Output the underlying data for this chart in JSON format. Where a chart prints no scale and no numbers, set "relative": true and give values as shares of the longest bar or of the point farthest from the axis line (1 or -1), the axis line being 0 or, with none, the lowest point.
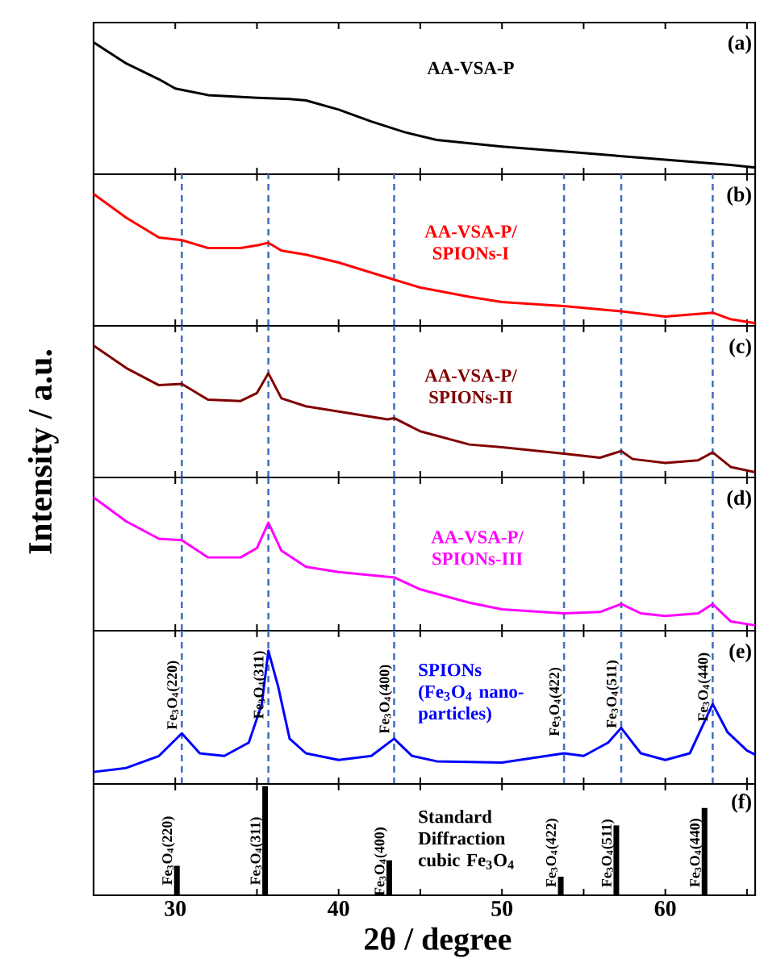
{
  "chart_data": [
    {
      "type": "line",
      "title": "AA-VSA-P",
      "color": "#000000",
      "relative": true,
      "xlim": [
        25,
        65.5
      ],
      "tick_labels": false,
      "xticks": [
        {
          "value": 30,
          "label": null
        },
        {
          "value": 35,
          "label": null
        },
        {
          "value": 40,
          "label": null
        },
        {
          "value": 45,
          "label": null
        },
        {
          "value": 50,
          "label": null
        },
        {
          "value": 55,
          "label": null
        },
        {
          "value": 60,
          "label": null
        },
        {
          "value": 65,
          "label": null
        }
      ],
      "x": [
        25,
        27,
        29,
        30,
        32,
        35,
        37,
        38,
        40,
        42,
        44,
        46,
        50,
        55,
        60,
        64,
        65.5
      ],
      "values": [
        1,
        0.84,
        0.72,
        0.65,
        0.6,
        0.58,
        0.57,
        0.56,
        0.49,
        0.4,
        0.32,
        0.26,
        0.21,
        0.16,
        0.11,
        0.07,
        0.05
      ],
      "annotations": [
        "(a)"
      ]
    },
    {
      "type": "line",
      "title": "AA-VSA-P/ SPIONs-I",
      "color": "#ff0000",
      "relative": true,
      "xlim": [
        25,
        65.5
      ],
      "tick_labels": false,
      "xticks": [
        {
          "value": 30,
          "label": null
        },
        {
          "value": 35,
          "label": null
        },
        {
          "value": 40,
          "label": null
        },
        {
          "value": 45,
          "label": null
        },
        {
          "value": 50,
          "label": null
        },
        {
          "value": 55,
          "label": null
        },
        {
          "value": 60,
          "label": null
        },
        {
          "value": 65,
          "label": null
        }
      ],
      "x": [
        25,
        27,
        29,
        30.4,
        32,
        34,
        35,
        35.7,
        36.5,
        38,
        40,
        43.4,
        45,
        48,
        50,
        53.8,
        57.3,
        60,
        62.9,
        64,
        65.5
      ],
      "values": [
        1,
        0.82,
        0.67,
        0.65,
        0.59,
        0.59,
        0.61,
        0.63,
        0.57,
        0.54,
        0.48,
        0.35,
        0.29,
        0.22,
        0.18,
        0.15,
        0.11,
        0.07,
        0.1,
        0.05,
        0.02
      ],
      "ref_lines": [
        {
          "axis": "x",
          "value": 30.4,
          "color": "#4472c4",
          "line_style": "dashed"
        },
        {
          "axis": "x",
          "value": 35.7,
          "color": "#4472c4",
          "line_style": "dashed"
        },
        {
          "axis": "x",
          "value": 43.4,
          "color": "#4472c4",
          "line_style": "dashed"
        },
        {
          "axis": "x",
          "value": 53.8,
          "color": "#4472c4",
          "line_style": "dashed"
        },
        {
          "axis": "x",
          "value": 57.3,
          "color": "#4472c4",
          "line_style": "dashed"
        },
        {
          "axis": "x",
          "value": 62.9,
          "color": "#4472c4",
          "line_style": "dashed"
        }
      ],
      "annotations": [
        "(b)"
      ]
    },
    {
      "type": "line",
      "title": "AA-VSA-P/ SPIONs-II",
      "color": "#800000",
      "relative": true,
      "xlim": [
        25,
        65.5
      ],
      "tick_labels": false,
      "ylabel": "Intensity / a.u.",
      "xticks": [
        {
          "value": 30,
          "label": null
        },
        {
          "value": 35,
          "label": null
        },
        {
          "value": 40,
          "label": null
        },
        {
          "value": 45,
          "label": null
        },
        {
          "value": 50,
          "label": null
        },
        {
          "value": 55,
          "label": null
        },
        {
          "value": 60,
          "label": null
        },
        {
          "value": 65,
          "label": null
        }
      ],
      "x": [
        25,
        27,
        29,
        30.4,
        32,
        34,
        35,
        35.7,
        36.5,
        38,
        40,
        43,
        43.4,
        45,
        48,
        50,
        53.8,
        56,
        57.3,
        58,
        60,
        62,
        62.9,
        64,
        65.5
      ],
      "values": [
        1,
        0.83,
        0.7,
        0.71,
        0.59,
        0.58,
        0.64,
        0.79,
        0.6,
        0.54,
        0.5,
        0.44,
        0.45,
        0.35,
        0.25,
        0.23,
        0.18,
        0.15,
        0.2,
        0.14,
        0.11,
        0.13,
        0.19,
        0.08,
        0.04
      ],
      "ref_lines": [
        {
          "axis": "x",
          "value": 30.4,
          "color": "#4472c4",
          "line_style": "dashed"
        },
        {
          "axis": "x",
          "value": 35.7,
          "color": "#4472c4",
          "line_style": "dashed"
        },
        {
          "axis": "x",
          "value": 43.4,
          "color": "#4472c4",
          "line_style": "dashed"
        },
        {
          "axis": "x",
          "value": 53.8,
          "color": "#4472c4",
          "line_style": "dashed"
        },
        {
          "axis": "x",
          "value": 57.3,
          "color": "#4472c4",
          "line_style": "dashed"
        },
        {
          "axis": "x",
          "value": 62.9,
          "color": "#4472c4",
          "line_style": "dashed"
        }
      ],
      "annotations": [
        "(c)"
      ]
    },
    {
      "type": "line",
      "title": "AA-VSA-P/ SPIONs-III",
      "color": "#ff00ff",
      "relative": true,
      "xlim": [
        25,
        65.5
      ],
      "tick_labels": false,
      "xticks": [
        {
          "value": 30,
          "label": null
        },
        {
          "value": 35,
          "label": null
        },
        {
          "value": 40,
          "label": null
        },
        {
          "value": 45,
          "label": null
        },
        {
          "value": 50,
          "label": null
        },
        {
          "value": 55,
          "label": null
        },
        {
          "value": 60,
          "label": null
        },
        {
          "value": 65,
          "label": null
        }
      ],
      "x": [
        25,
        27,
        29,
        30.4,
        32,
        34,
        35,
        35.7,
        36.5,
        38,
        40,
        43.4,
        45,
        48,
        50,
        53.8,
        56,
        57.3,
        58.5,
        60,
        62,
        62.9,
        64,
        65.5
      ],
      "values": [
        1,
        0.82,
        0.69,
        0.68,
        0.55,
        0.55,
        0.62,
        0.81,
        0.6,
        0.48,
        0.44,
        0.4,
        0.31,
        0.21,
        0.16,
        0.13,
        0.14,
        0.2,
        0.13,
        0.11,
        0.13,
        0.2,
        0.07,
        0.04
      ],
      "ref_lines": [
        {
          "axis": "x",
          "value": 30.4,
          "color": "#4472c4",
          "line_style": "dashed"
        },
        {
          "axis": "x",
          "value": 35.7,
          "color": "#4472c4",
          "line_style": "dashed"
        },
        {
          "axis": "x",
          "value": 43.4,
          "color": "#4472c4",
          "line_style": "dashed"
        },
        {
          "axis": "x",
          "value": 53.8,
          "color": "#4472c4",
          "line_style": "dashed"
        },
        {
          "axis": "x",
          "value": 57.3,
          "color": "#4472c4",
          "line_style": "dashed"
        },
        {
          "axis": "x",
          "value": 62.9,
          "color": "#4472c4",
          "line_style": "dashed"
        }
      ],
      "annotations": [
        "(d)"
      ]
    },
    {
      "type": "line",
      "title": "SPIONs (Fe$_{3}$O$_{4}$ nano-particles)",
      "color": "#0000ff",
      "relative": true,
      "xlim": [
        25,
        65.5
      ],
      "tick_labels": false,
      "xticks": [
        {
          "value": 30,
          "label": null
        },
        {
          "value": 35,
          "label": null
        },
        {
          "value": 40,
          "label": null
        },
        {
          "value": 45,
          "label": null
        },
        {
          "value": 50,
          "label": null
        },
        {
          "value": 55,
          "label": null
        },
        {
          "value": 60,
          "label": null
        },
        {
          "value": 65,
          "label": null
        }
      ],
      "x": [
        25,
        27,
        29,
        30.4,
        31.5,
        33,
        34.5,
        35.3,
        35.7,
        36.3,
        37,
        38,
        40,
        42,
        43.4,
        44.5,
        46,
        50,
        53.8,
        55,
        56.5,
        57.3,
        58.5,
        60,
        61.5,
        62.9,
        63.8,
        65,
        65.5
      ],
      "values": [
        0.09,
        0.12,
        0.21,
        0.38,
        0.23,
        0.21,
        0.31,
        0.6,
        1,
        0.73,
        0.34,
        0.23,
        0.18,
        0.21,
        0.34,
        0.21,
        0.17,
        0.16,
        0.23,
        0.21,
        0.31,
        0.42,
        0.23,
        0.18,
        0.23,
        0.6,
        0.39,
        0.25,
        0.22
      ],
      "ref_lines": [
        {
          "axis": "x",
          "value": 30.4,
          "color": "#4472c4",
          "line_style": "dashed"
        },
        {
          "axis": "x",
          "value": 35.7,
          "color": "#4472c4",
          "line_style": "dashed"
        },
        {
          "axis": "x",
          "value": 43.4,
          "color": "#4472c4",
          "line_style": "dashed"
        },
        {
          "axis": "x",
          "value": 53.8,
          "color": "#4472c4",
          "line_style": "dashed"
        },
        {
          "axis": "x",
          "value": 57.3,
          "color": "#4472c4",
          "line_style": "dashed"
        },
        {
          "axis": "x",
          "value": 62.9,
          "color": "#4472c4",
          "line_style": "dashed"
        }
      ],
      "annotations": [
        "(e)",
        {
          "text": "Fe$_{3}$O$_{4}$(220)",
          "x": 30.4,
          "y": 0.43
        },
        {
          "text": "Fe$_{3}$O$_{4}$(311)",
          "x": 35.7,
          "y": 0.51
        },
        {
          "text": "Fe$_{3}$O$_{4}$(400)",
          "x": 43.4,
          "y": 0.4
        },
        {
          "text": "Fe$_{3}$O$_{4}$(422)",
          "x": 53.8,
          "y": 0.38
        },
        {
          "text": "Fe$_{3}$O$_{4}$(511)",
          "x": 57.3,
          "y": 0.44
        },
        {
          "text": "Fe$_{3}$O$_{4}$(440)",
          "x": 62.9,
          "y": 0.49
        }
      ]
    },
    {
      "type": "bar",
      "title": "Standard Diffraction cubic Fe$_{3}$O$_{4}$",
      "color": "#000000",
      "relative": true,
      "xlim": [
        25,
        65.5
      ],
      "tick_labels": "x",
      "xlabel": "2θ / degree",
      "xticks": [
        30,
        {
          "value": 35,
          "label": null
        },
        40,
        {
          "value": 45,
          "label": null
        },
        50,
        {
          "value": 55,
          "label": null
        },
        60,
        {
          "value": 65,
          "label": null
        }
      ],
      "x": [
        30.1,
        35.5,
        43.1,
        53.6,
        57.0,
        62.4
      ],
      "values": [
        0.27,
        1,
        0.32,
        0.17,
        0.64,
        0.8
      ],
      "annotations": [
        "(f)",
        {
          "text": "Fe$_{3}$O$_{4}$(220)",
          "x": 30.1,
          "y": 0.12
        },
        {
          "text": "Fe$_{3}$O$_{4}$(311)",
          "x": 35.5,
          "y": 0.12
        },
        {
          "text": "Fe$_{3}$O$_{4}$(400)",
          "x": 43.1,
          "y": 0.02
        },
        {
          "text": "Fe$_{3}$O$_{4}$(422)",
          "x": 53.6,
          "y": 0.1
        },
        {
          "text": "Fe$_{3}$O$_{4}$(511)",
          "x": 57.0,
          "y": 0.1
        },
        {
          "text": "Fe$_{3}$O$_{4}$(440)",
          "x": 62.4,
          "y": 0.1
        }
      ]
    }
  ]
}
